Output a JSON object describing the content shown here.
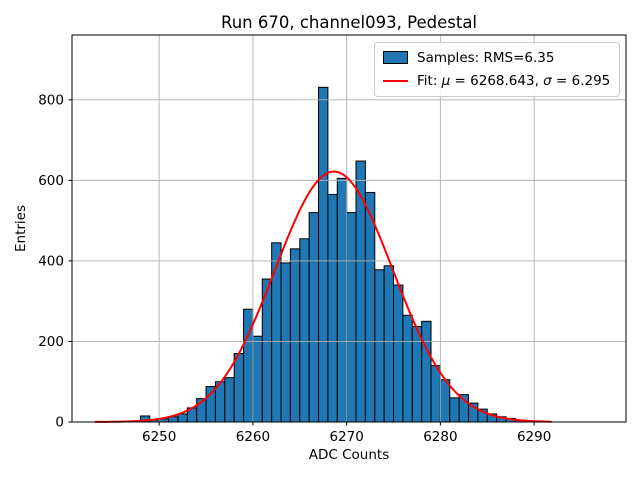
{
  "chart_data": {
    "type": "bar",
    "subtype": "histogram-with-gaussian-fit",
    "title": "Run 670, channel093, Pedestal",
    "xlabel": "ADC Counts",
    "ylabel": "Entries",
    "xlim": [
      6240.7,
      6299.8
    ],
    "ylim": [
      0,
      961
    ],
    "xticks": [
      6250,
      6260,
      6270,
      6280,
      6290
    ],
    "yticks": [
      0,
      200,
      400,
      600,
      800
    ],
    "grid": true,
    "bins": {
      "start": 6248,
      "bin_width": 1,
      "counts": [
        15,
        5,
        8,
        13,
        20,
        35,
        58,
        88,
        100,
        110,
        170,
        280,
        213,
        355,
        445,
        395,
        430,
        455,
        520,
        831,
        565,
        605,
        520,
        648,
        570,
        378,
        388,
        340,
        265,
        237,
        250,
        140,
        105,
        60,
        68,
        47,
        32,
        20,
        13,
        9,
        5,
        2
      ]
    },
    "fit": {
      "mu": 6268.643,
      "sigma": 6.295,
      "amplitude": 622,
      "x_min": 6243.2,
      "x_max": 6291.9
    },
    "legend": {
      "position": "upper-right",
      "items": [
        {
          "handle": "patch",
          "color": "#1f77b4",
          "parts": [
            {
              "t": "Samples: RMS=6.35",
              "i": false
            }
          ]
        },
        {
          "handle": "line",
          "color": "#ff0000",
          "parts": [
            {
              "t": "Fit: ",
              "i": false
            },
            {
              "t": "μ",
              "i": true
            },
            {
              "t": " = 6268.643, ",
              "i": false
            },
            {
              "t": "σ",
              "i": true
            },
            {
              "t": " = 6.295",
              "i": false
            }
          ]
        }
      ]
    },
    "colors": {
      "bar_fill": "#1f77b4",
      "bar_edge": "#000000",
      "fit_line": "#ff0000",
      "grid": "#b0b0b0",
      "spine": "#000000",
      "background": "#ffffff",
      "legend_border": "#cccccc",
      "text": "#000000"
    }
  }
}
